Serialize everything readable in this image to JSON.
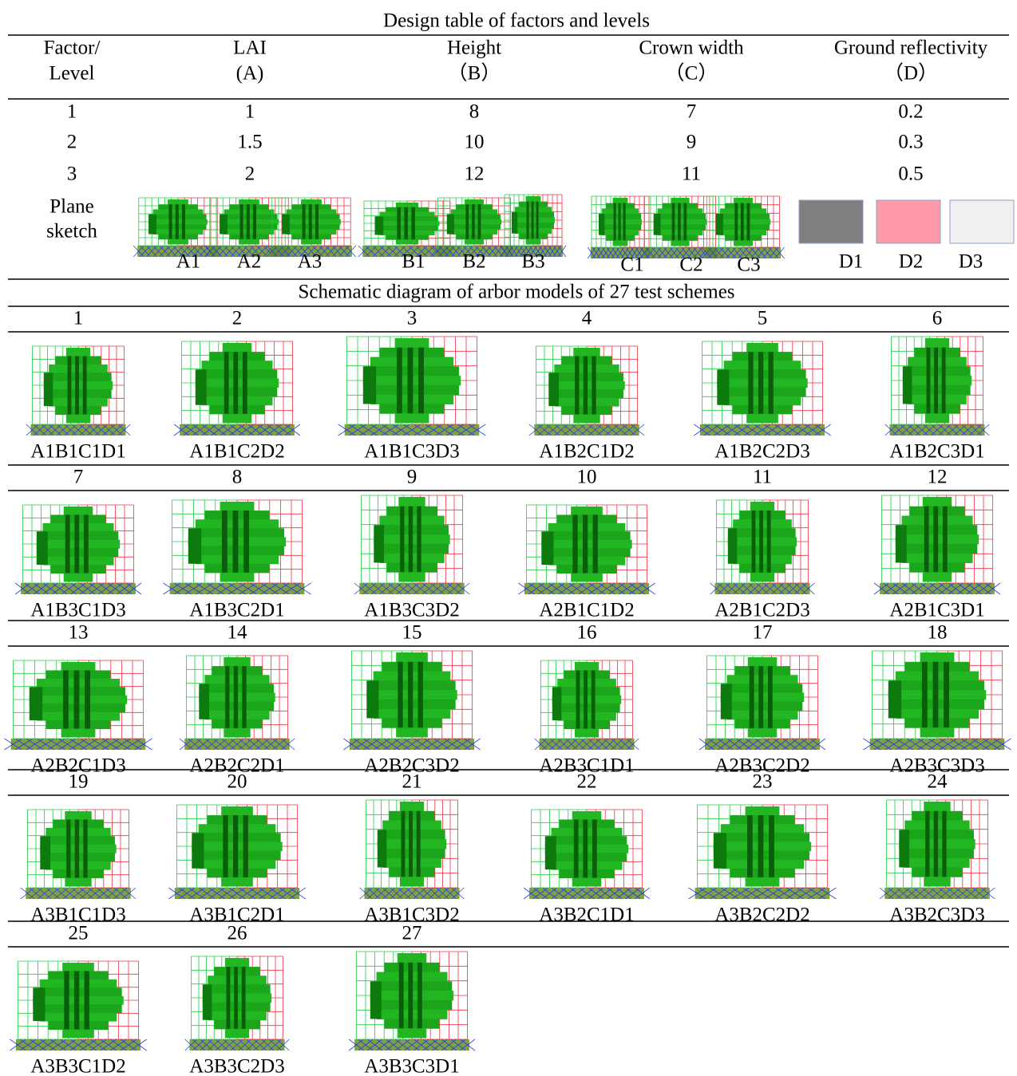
{
  "title": "Design table of factors and levels",
  "headers": [
    [
      "Factor/",
      "Level"
    ],
    [
      "LAI",
      "(A)"
    ],
    [
      "Height",
      "（B）"
    ],
    [
      "Crown width",
      "（C）"
    ],
    [
      "Ground reflectivity",
      "（D）"
    ]
  ],
  "rows": [
    [
      "1",
      "1",
      "8",
      "7",
      "0.2"
    ],
    [
      "2",
      "1.5",
      "10",
      "9",
      "0.3"
    ],
    [
      "3",
      "2",
      "12",
      "11",
      "0.5"
    ]
  ],
  "sketch_row": {
    "label": [
      "Plane",
      "sketch"
    ],
    "sketches": [
      [
        "A1",
        "A2",
        "A3"
      ],
      [
        "B1",
        "B2",
        "B3"
      ],
      [
        "C1",
        "C2",
        "C3"
      ],
      [
        "D1",
        "D2",
        "D3"
      ]
    ]
  },
  "schemes_title": "Schematic diagram of arbor models of 27 test schemes",
  "schemes": [
    {
      "number": "1",
      "label": "A1B1C1D1"
    },
    {
      "number": "2",
      "label": "A1B1C2D2"
    },
    {
      "number": "3",
      "label": "A1B1C3D3"
    },
    {
      "number": "4",
      "label": "A1B2C1D2"
    },
    {
      "number": "5",
      "label": "A1B2C2D3"
    },
    {
      "number": "6",
      "label": "A1B2C3D1"
    },
    {
      "number": "7",
      "label": "A1B3C1D3"
    },
    {
      "number": "8",
      "label": "A1B3C2D1"
    },
    {
      "number": "9",
      "label": "A1B3C3D2"
    },
    {
      "number": "10",
      "label": "A2B1C1D2"
    },
    {
      "number": "11",
      "label": "A2B1C2D3"
    },
    {
      "number": "12",
      "label": "A2B1C3D1"
    },
    {
      "number": "13",
      "label": "A2B2C1D3"
    },
    {
      "number": "14",
      "label": "A2B2C2D1"
    },
    {
      "number": "15",
      "label": "A2B2C3D2"
    },
    {
      "number": "16",
      "label": "A2B3C1D1"
    },
    {
      "number": "17",
      "label": "A2B3C2D2"
    },
    {
      "number": "18",
      "label": "A2B3C3D3"
    },
    {
      "number": "19",
      "label": "A3B1C1D3"
    },
    {
      "number": "20",
      "label": "A3B1C2D1"
    },
    {
      "number": "21",
      "label": "A3B1C3D2"
    },
    {
      "number": "22",
      "label": "A3B2C1D1"
    },
    {
      "number": "23",
      "label": "A3B2C2D2"
    },
    {
      "number": "24",
      "label": "A3B2C3D3"
    },
    {
      "number": "25",
      "label": "A3B3C1D2"
    },
    {
      "number": "26",
      "label": "A3B3C2D3"
    },
    {
      "number": "27",
      "label": "A3B3C3D1"
    }
  ]
}
